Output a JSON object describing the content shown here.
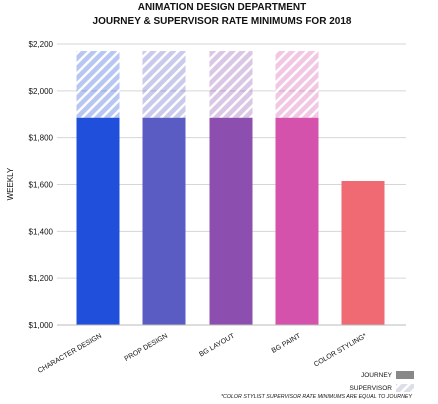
{
  "chart_data": {
    "type": "bar",
    "title_line1": "ANIMATION DESIGN DEPARTMENT",
    "title_line2": "JOURNEY & SUPERVISOR RATE MINIMUMS FOR 2018",
    "ylabel": "WEEKLY",
    "xlabel": "",
    "ylim": [
      1000,
      2200
    ],
    "yticks": [
      1000,
      1200,
      1400,
      1600,
      1800,
      2000,
      2200
    ],
    "ytick_labels": [
      "$1,000",
      "$1,200",
      "$1,400",
      "$1,600",
      "$1,800",
      "$2,000",
      "$2,200"
    ],
    "categories": [
      "CHARACTER DESIGN",
      "PROP DESIGN",
      "BG LAYOUT",
      "BG PAINT",
      "COLOR STYLING*"
    ],
    "colors": [
      "#1f4fdb",
      "#5b5bc4",
      "#8c4fb0",
      "#d552ac",
      "#ef6a72"
    ],
    "series": [
      {
        "name": "JOURNEY",
        "values": [
          1885,
          1885,
          1885,
          1885,
          1615
        ]
      },
      {
        "name": "SUPERVISOR",
        "values": [
          2170,
          2170,
          2170,
          2170,
          1615
        ]
      }
    ],
    "legend_position": "bottom-right",
    "legend_colors": {
      "JOURNEY": "#888888",
      "SUPERVISOR": "#d8d8e4"
    },
    "grid": true,
    "footnote": "*COLOR STYLIST SUPERVISOR RATE MINIMUMS ARE EQUAL TO JOURNEY"
  }
}
